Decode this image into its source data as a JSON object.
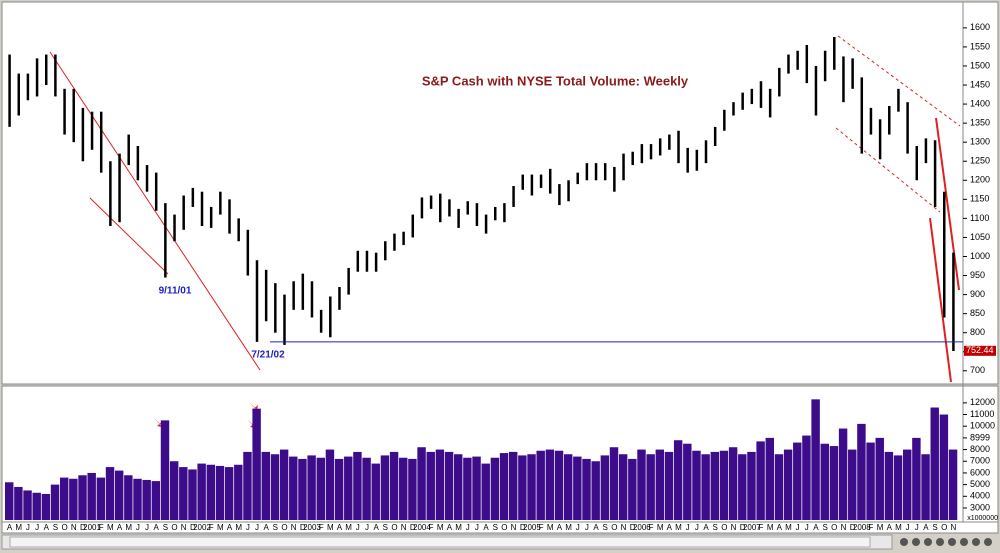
{
  "chart_data": [
    {
      "type": "ohlc",
      "title": "S&P Cash with NYSE Total Volume: Weekly",
      "annotations": [
        "9/11/01",
        "7/21/02"
      ],
      "last_price": 752.44,
      "hline": 776,
      "color": "#000000",
      "ylim": [
        668,
        1660
      ],
      "yticks": [
        700,
        750,
        800,
        850,
        900,
        950,
        1000,
        1050,
        1100,
        1150,
        1200,
        1250,
        1300,
        1350,
        1400,
        1450,
        1500,
        1550,
        1600
      ],
      "high": [
        1530,
        1480,
        1480,
        1520,
        1530,
        1530,
        1440,
        1440,
        1390,
        1380,
        1380,
        1250,
        1270,
        1320,
        1290,
        1240,
        1220,
        1140,
        1110,
        1160,
        1180,
        1170,
        1130,
        1170,
        1150,
        1100,
        1070,
        990,
        965,
        930,
        900,
        935,
        955,
        935,
        860,
        895,
        920,
        970,
        1015,
        1015,
        1010,
        1040,
        1060,
        1065,
        1110,
        1155,
        1160,
        1165,
        1150,
        1125,
        1145,
        1140,
        1110,
        1130,
        1140,
        1185,
        1215,
        1215,
        1215,
        1230,
        1190,
        1200,
        1220,
        1245,
        1245,
        1245,
        1235,
        1270,
        1275,
        1295,
        1295,
        1310,
        1320,
        1330,
        1285,
        1280,
        1305,
        1340,
        1385,
        1405,
        1430,
        1440,
        1460,
        1440,
        1495,
        1530,
        1540,
        1555,
        1500,
        1540,
        1576,
        1525,
        1520,
        1470,
        1390,
        1360,
        1395,
        1440,
        1405,
        1290,
        1310,
        1305,
        1170,
        1010
      ],
      "low": [
        1340,
        1370,
        1410,
        1420,
        1450,
        1420,
        1320,
        1300,
        1250,
        1280,
        1220,
        1080,
        1090,
        1240,
        1200,
        1170,
        1120,
        945,
        1040,
        1070,
        1130,
        1080,
        1075,
        1110,
        1060,
        1040,
        950,
        776,
        830,
        800,
        768,
        860,
        860,
        840,
        800,
        788,
        860,
        900,
        960,
        960,
        960,
        990,
        1015,
        1030,
        1050,
        1100,
        1125,
        1090,
        1105,
        1075,
        1110,
        1080,
        1060,
        1095,
        1090,
        1130,
        1175,
        1160,
        1180,
        1165,
        1135,
        1145,
        1190,
        1200,
        1200,
        1200,
        1170,
        1200,
        1240,
        1245,
        1255,
        1265,
        1280,
        1245,
        1220,
        1225,
        1245,
        1290,
        1330,
        1370,
        1385,
        1400,
        1390,
        1365,
        1420,
        1480,
        1490,
        1455,
        1370,
        1460,
        1490,
        1405,
        1440,
        1270,
        1320,
        1255,
        1320,
        1380,
        1270,
        1200,
        1245,
        1130,
        840,
        752
      ]
    },
    {
      "type": "bar",
      "y_label": "x1000000",
      "color": "#3d0c8a",
      "ylim": [
        1970,
        13100
      ],
      "yticks": [
        3000,
        4000,
        5000,
        6000,
        7000,
        8000,
        8999,
        10000,
        11000,
        12000
      ],
      "categories": [
        "A",
        "M",
        "J",
        "J",
        "A",
        "S",
        "O",
        "N",
        "D",
        "2001",
        "F",
        "M",
        "A",
        "M",
        "J",
        "J",
        "A",
        "S",
        "O",
        "N",
        "D",
        "2002",
        "F",
        "M",
        "A",
        "M",
        "J",
        "J",
        "A",
        "S",
        "O",
        "N",
        "D",
        "2003",
        "F",
        "M",
        "A",
        "M",
        "J",
        "J",
        "A",
        "S",
        "O",
        "N",
        "D",
        "2004",
        "F",
        "M",
        "A",
        "M",
        "J",
        "J",
        "A",
        "S",
        "O",
        "N",
        "D",
        "2005",
        "F",
        "M",
        "A",
        "M",
        "J",
        "J",
        "A",
        "S",
        "O",
        "N",
        "D",
        "2006",
        "F",
        "M",
        "A",
        "M",
        "J",
        "J",
        "A",
        "S",
        "O",
        "N",
        "D",
        "2007",
        "F",
        "M",
        "A",
        "M",
        "J",
        "J",
        "A",
        "S",
        "O",
        "N",
        "D",
        "2008",
        "F",
        "M",
        "A",
        "M",
        "J",
        "J",
        "A",
        "S",
        "O",
        "N"
      ],
      "values": [
        5200,
        4800,
        4500,
        4300,
        4200,
        5000,
        5600,
        5500,
        5800,
        6000,
        5600,
        6500,
        6200,
        5800,
        5500,
        5400,
        5300,
        10500,
        7000,
        6500,
        6300,
        6800,
        6700,
        6600,
        6500,
        6700,
        7800,
        11500,
        7800,
        7600,
        8000,
        7400,
        7200,
        7500,
        7300,
        8000,
        7200,
        7400,
        7800,
        7300,
        6800,
        7500,
        7800,
        7300,
        7200,
        8200,
        7800,
        8000,
        7800,
        7600,
        7300,
        7400,
        6800,
        7300,
        7700,
        7800,
        7500,
        7600,
        7900,
        8000,
        7900,
        7600,
        7400,
        7200,
        7000,
        7500,
        8200,
        7600,
        7200,
        8000,
        7600,
        8000,
        7800,
        8800,
        8500,
        7900,
        7600,
        7800,
        7900,
        8200,
        7600,
        7800,
        8700,
        9000,
        7600,
        8000,
        8600,
        9200,
        12300,
        8500,
        8300,
        9800,
        8000,
        10200,
        8600,
        9000,
        7800,
        7500,
        8000,
        9000,
        7600,
        11600,
        11000,
        8000
      ]
    }
  ]
}
